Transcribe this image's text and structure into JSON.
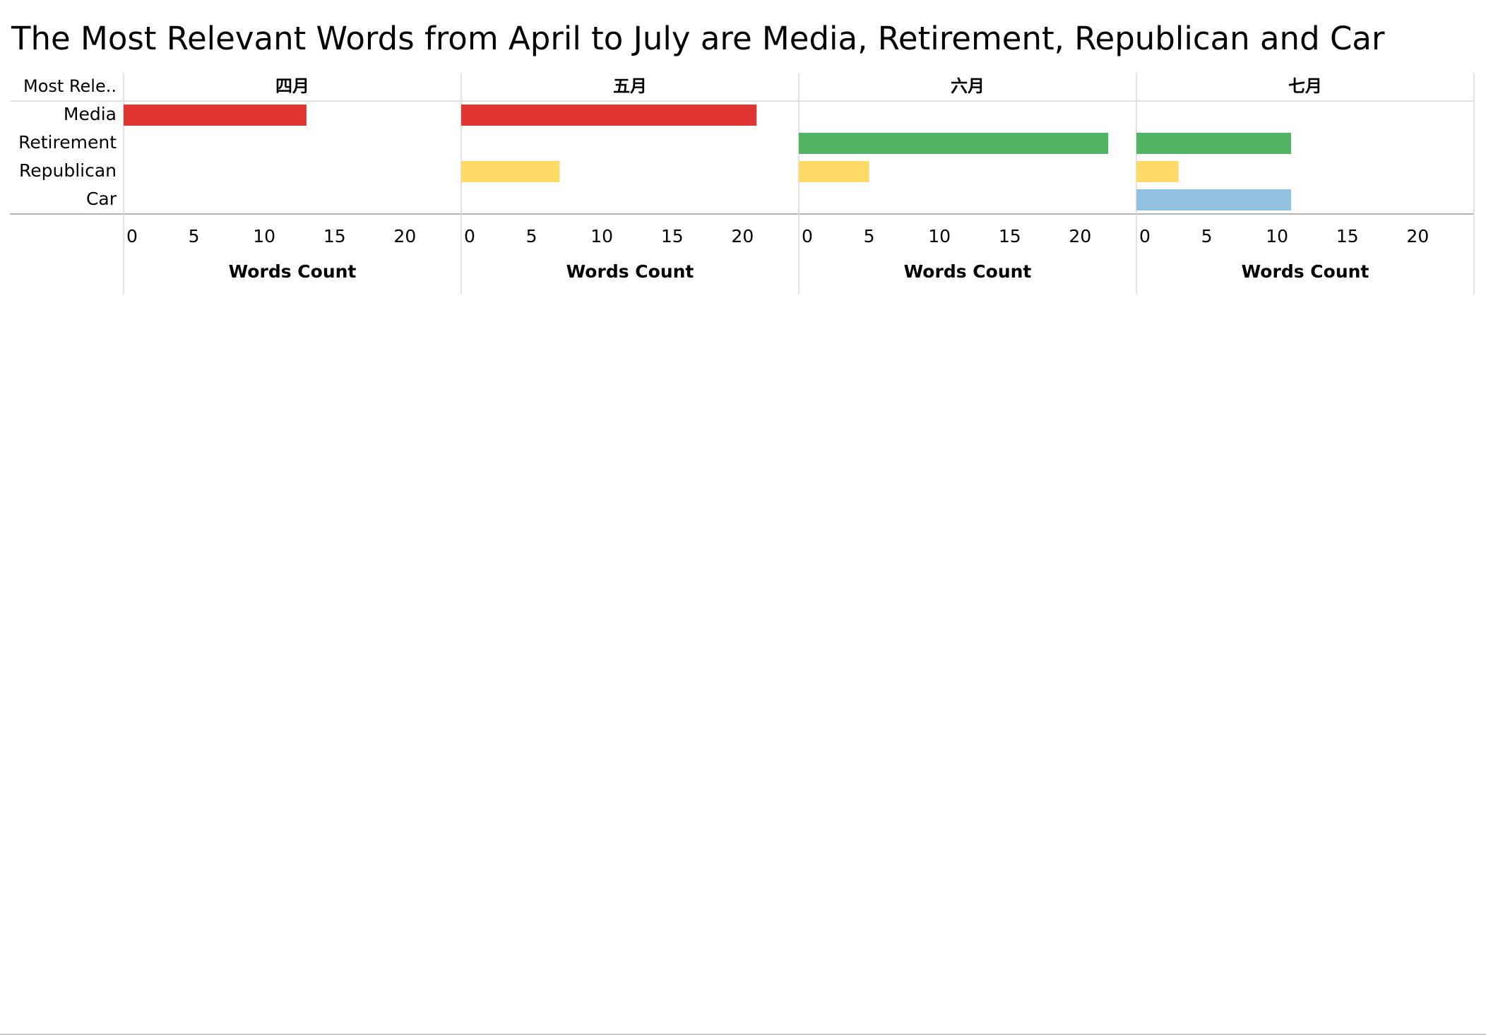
{
  "chart_data": {
    "type": "bar",
    "orientation": "horizontal",
    "layout": "small-multiples",
    "title": "The Most Relevant Words from April to July are Media, Retirement, Republican and Car",
    "row_header": "Most Rele..",
    "categories": [
      "Media",
      "Retirement",
      "Republican",
      "Car"
    ],
    "xlabel": "Words Count",
    "xlim": [
      0,
      24
    ],
    "xticks": [
      0,
      5,
      10,
      15,
      20
    ],
    "grid": false,
    "legend": "none",
    "colors": {
      "Media": "#e03531",
      "Retirement": "#51b364",
      "Republican": "#ffda66",
      "Car": "#92c1e1"
    },
    "panels": [
      {
        "label": "四月",
        "values": [
          13,
          null,
          null,
          null
        ]
      },
      {
        "label": "五月",
        "values": [
          21,
          null,
          7,
          null
        ]
      },
      {
        "label": "六月",
        "values": [
          null,
          22,
          5,
          null
        ]
      },
      {
        "label": "七月",
        "values": [
          null,
          11,
          3,
          11
        ]
      }
    ]
  }
}
